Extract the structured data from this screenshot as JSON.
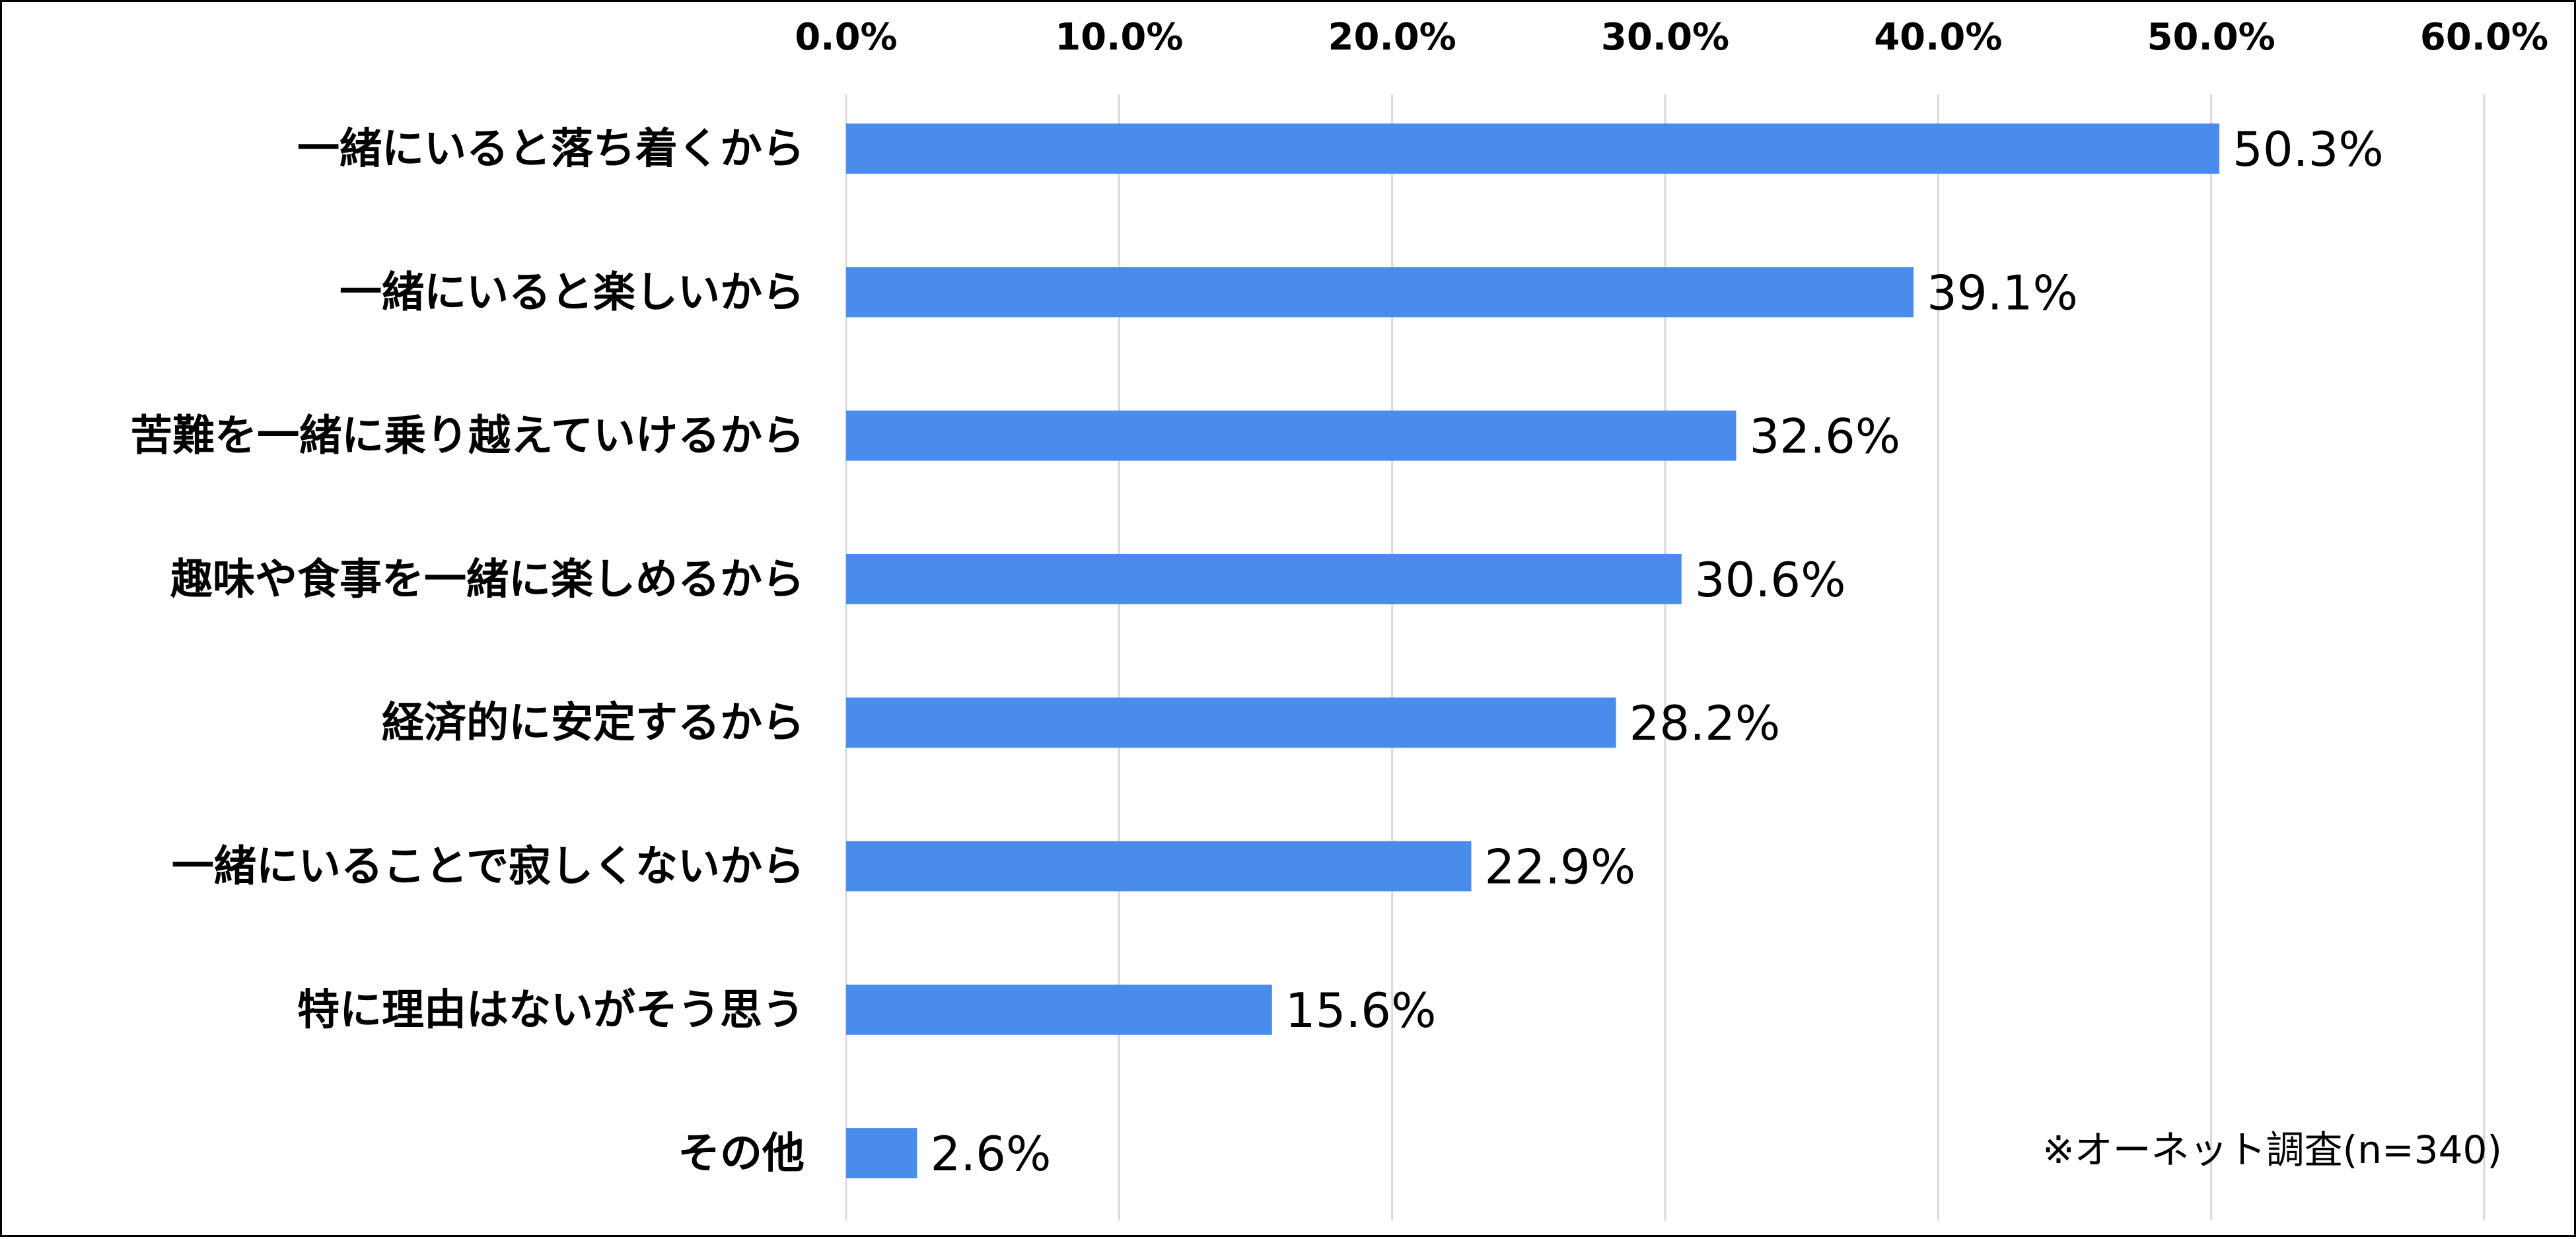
{
  "chart_data": {
    "type": "bar",
    "orientation": "horizontal",
    "categories": [
      "一緒にいると落ち着くから",
      "一緒にいると楽しいから",
      "苦難を一緒に乗り越えていけるから",
      "趣味や食事を一緒に楽しめるから",
      "経済的に安定するから",
      "一緒にいることで寂しくないから",
      "特に理由はないがそう思う",
      "その他"
    ],
    "values": [
      50.3,
      39.1,
      32.6,
      30.6,
      28.2,
      22.9,
      15.6,
      2.6
    ],
    "data_labels": [
      "50.3%",
      "39.1%",
      "32.6%",
      "30.6%",
      "28.2%",
      "22.9%",
      "15.6%",
      "2.6%"
    ],
    "xlim": [
      0,
      60
    ],
    "x_ticks": [
      0,
      10,
      20,
      30,
      40,
      50,
      60
    ],
    "x_tick_labels": [
      "0.0%",
      "10.0%",
      "20.0%",
      "30.0%",
      "40.0%",
      "50.0%",
      "60.0%"
    ],
    "x_axis_position": "top",
    "grid": true,
    "bar_color": "#4a8cec",
    "grid_color": "#d9d9d9",
    "title": "",
    "xlabel": "",
    "ylabel": "",
    "note": "※オーネット調査(n=340)"
  }
}
